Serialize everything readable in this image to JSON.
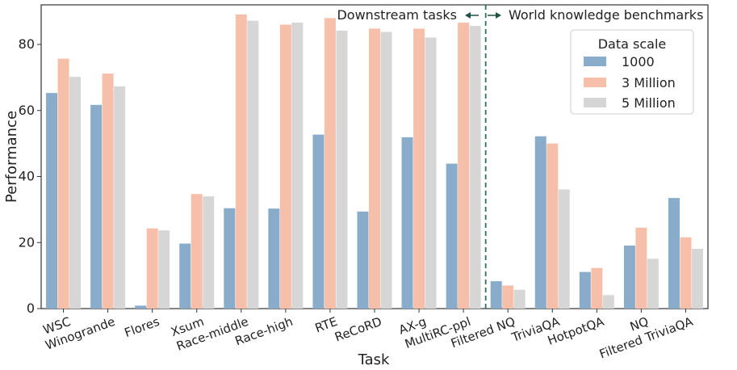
{
  "chart_data": {
    "type": "bar",
    "xlabel": "Task",
    "ylabel": "Performance",
    "ylim": [
      0,
      92
    ],
    "yticks": [
      0,
      20,
      40,
      60,
      80
    ],
    "grid": false,
    "legend": {
      "title": "Data scale",
      "placement": "top-right"
    },
    "categories": [
      "WSC",
      "Winogrande",
      "Flores",
      "Xsum",
      "Race-middle",
      "Race-high",
      "RTE",
      "ReCoRD",
      "AX-g",
      "MultiRC-ppl",
      "Filtered NQ",
      "TriviaQA",
      "HotpotQA",
      "NQ",
      "Filtered TriviaQA"
    ],
    "series": [
      {
        "name": "1000",
        "color": "#8aaccb",
        "values": [
          65.3,
          61.7,
          0.9,
          19.7,
          30.4,
          30.3,
          52.7,
          29.4,
          51.9,
          43.9,
          8.3,
          52.2,
          11.1,
          19.1,
          33.5
        ]
      },
      {
        "name": "3 Million",
        "color": "#f6bfa9",
        "values": [
          75.7,
          71.2,
          24.3,
          34.7,
          89.1,
          86.0,
          88.0,
          84.8,
          84.8,
          86.6,
          7.0,
          50.0,
          12.3,
          24.5,
          21.6
        ]
      },
      {
        "name": "5 Million",
        "color": "#d6d6d6",
        "values": [
          70.2,
          67.3,
          23.7,
          34.0,
          87.2,
          86.6,
          84.2,
          83.8,
          82.1,
          85.6,
          5.7,
          36.1,
          4.1,
          15.1,
          18.1
        ]
      }
    ],
    "divider_after_index": 9,
    "annotations": {
      "left": "Downstream tasks",
      "right": "World knowledge benchmarks"
    }
  }
}
